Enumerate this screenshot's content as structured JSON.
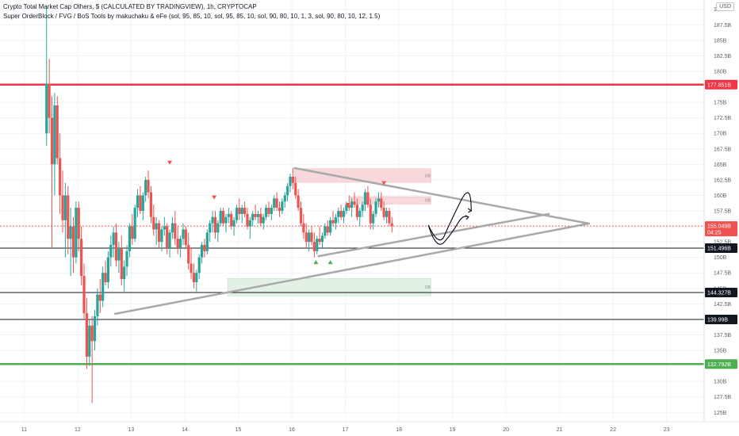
{
  "header": {
    "title": "Crypto Total Market Cap Others, $ (CALCULATED BY TRADINGVIEW), 1h, CRYPTOCAP",
    "indicator": "Super OrderBlock / FVG / BoS Tools by makuchaku & eFe (sol, 95, 85, 10, sol, 95, 85, 10, sol, 90, 80, 10, 1, 3, sol, 90, 80, 10, 12, 1.5)",
    "currency": "USD"
  },
  "colors": {
    "up": "#26a69a",
    "down": "#ef5350",
    "resistance": "#f23645",
    "support": "#4caf50",
    "neutral_line": "#131722",
    "triangle": "#a9a9a9",
    "price_line": "#ef5350",
    "ob_zone_red": "#f7d9dc",
    "ob_zone_green": "#e3f1e4",
    "grid": "#f0f3fa"
  },
  "chart_data": {
    "type": "candlestick",
    "x_ticks": [
      "11",
      "12",
      "13",
      "14",
      "15",
      "16",
      "17",
      "18",
      "19",
      "20",
      "21",
      "22",
      "23"
    ],
    "y_ticks": [
      "190B",
      "187.5B",
      "185B",
      "182.5B",
      "180B",
      "175B",
      "172.5B",
      "170B",
      "167.5B",
      "165B",
      "162.5B",
      "160B",
      "157.5B",
      "152.5B",
      "150B",
      "147.5B",
      "145B",
      "142.5B",
      "137.5B",
      "135B",
      "130B",
      "127.5B",
      "125B"
    ],
    "ylim": [
      123.5,
      191.5
    ],
    "xlim": [
      10.55,
      23.7
    ],
    "horizontal_levels": [
      {
        "label": "177.851B",
        "value": 177.851,
        "kind": "resistance"
      },
      {
        "label": "151.496B",
        "value": 151.496,
        "kind": "neutral"
      },
      {
        "label": "144.327B",
        "value": 144.327,
        "kind": "neutral"
      },
      {
        "label": "139.99B",
        "value": 139.99,
        "kind": "neutral"
      },
      {
        "label": "132.792B",
        "value": 132.792,
        "kind": "support"
      }
    ],
    "current_price": {
      "label": "155.049B",
      "countdown": "04:25",
      "value": 155.049
    },
    "triangle_lines": [
      {
        "x1": 12.7,
        "y1": 140.9,
        "x2": 21.55,
        "y2": 155.45
      },
      {
        "x1": 16.05,
        "y1": 164.4,
        "x2": 21.55,
        "y2": 155.45
      },
      {
        "x1": 16.5,
        "y1": 150.2,
        "x2": 20.8,
        "y2": 157.0
      }
    ],
    "order_blocks": [
      {
        "x1": 16.05,
        "x2": 18.6,
        "y_top": 164.3,
        "y_bot": 162.1,
        "kind": "bear",
        "label": "OB"
      },
      {
        "x1": 17.1,
        "x2": 18.6,
        "y_top": 159.8,
        "y_bot": 158.6,
        "kind": "bear",
        "label": "OB"
      },
      {
        "x1": 14.8,
        "x2": 18.6,
        "y_top": 146.6,
        "y_bot": 143.8,
        "kind": "bull",
        "label": "OB"
      }
    ],
    "ohlc_series_note": "approximate 1h candles",
    "candles": [
      [
        11.42,
        170.0,
        190.5,
        168.0,
        178.0
      ],
      [
        11.47,
        178.0,
        182.0,
        170.0,
        172.5
      ],
      [
        11.52,
        172.5,
        176.0,
        151.5,
        165.0
      ],
      [
        11.57,
        165.0,
        176.5,
        160.0,
        174.5
      ],
      [
        11.62,
        174.5,
        176.0,
        165.0,
        166.0
      ],
      [
        11.67,
        166.0,
        170.0,
        157.0,
        160.0
      ],
      [
        11.72,
        160.0,
        164.0,
        154.0,
        156.0
      ],
      [
        11.77,
        156.0,
        162.0,
        150.0,
        160.0
      ],
      [
        11.82,
        160.0,
        161.5,
        150.5,
        153.0
      ],
      [
        11.87,
        153.0,
        158.0,
        147.0,
        155.0
      ],
      [
        11.92,
        155.0,
        156.5,
        147.5,
        150.0
      ],
      [
        11.97,
        150.0,
        159.0,
        149.0,
        158.0
      ],
      [
        12.02,
        158.0,
        159.0,
        151.0,
        153.0
      ],
      [
        12.07,
        153.0,
        155.0,
        145.5,
        147.0
      ],
      [
        12.12,
        147.0,
        149.0,
        140.0,
        141.0
      ],
      [
        12.17,
        141.0,
        143.5,
        132.0,
        134.0
      ],
      [
        12.22,
        134.0,
        140.0,
        132.5,
        139.0
      ],
      [
        12.27,
        139.0,
        140.5,
        126.5,
        136.5
      ],
      [
        12.32,
        136.5,
        141.5,
        135.0,
        140.5
      ],
      [
        12.37,
        140.5,
        145.0,
        139.0,
        144.0
      ],
      [
        12.42,
        144.0,
        146.5,
        141.0,
        143.0
      ],
      [
        12.47,
        143.0,
        148.5,
        142.0,
        147.5
      ],
      [
        12.52,
        147.5,
        149.5,
        145.5,
        146.0
      ],
      [
        12.57,
        146.0,
        151.0,
        145.0,
        150.0
      ],
      [
        12.62,
        150.0,
        153.5,
        148.5,
        152.0
      ],
      [
        12.67,
        152.0,
        155.0,
        150.0,
        154.0
      ],
      [
        12.72,
        154.0,
        155.5,
        148.5,
        149.5
      ],
      [
        12.77,
        149.5,
        152.5,
        147.5,
        151.5
      ],
      [
        12.82,
        151.5,
        153.5,
        145.5,
        146.5
      ],
      [
        12.87,
        146.5,
        149.5,
        144.5,
        148.5
      ],
      [
        12.92,
        148.5,
        152.0,
        147.0,
        151.0
      ],
      [
        12.97,
        151.0,
        155.5,
        150.0,
        155.0
      ],
      [
        13.02,
        155.0,
        157.0,
        152.0,
        153.0
      ],
      [
        13.07,
        153.0,
        158.5,
        152.5,
        158.0
      ],
      [
        13.12,
        158.0,
        161.0,
        156.5,
        160.0
      ],
      [
        13.17,
        160.0,
        161.5,
        157.0,
        157.5
      ],
      [
        13.22,
        157.5,
        160.5,
        156.0,
        160.0
      ],
      [
        13.27,
        160.0,
        163.0,
        159.0,
        162.5
      ],
      [
        13.32,
        162.5,
        164.0,
        159.5,
        160.5
      ],
      [
        13.37,
        160.5,
        161.5,
        155.5,
        156.5
      ],
      [
        13.42,
        156.5,
        158.5,
        153.5,
        154.5
      ],
      [
        13.47,
        154.5,
        156.5,
        152.0,
        155.5
      ],
      [
        13.52,
        155.5,
        156.0,
        151.5,
        152.5
      ],
      [
        13.57,
        152.5,
        155.0,
        151.0,
        154.5
      ],
      [
        13.62,
        154.5,
        156.5,
        153.5,
        155.0
      ],
      [
        13.67,
        155.0,
        155.5,
        150.5,
        151.5
      ],
      [
        13.72,
        151.5,
        154.5,
        150.0,
        154.0
      ],
      [
        13.77,
        154.0,
        156.5,
        153.0,
        155.5
      ],
      [
        13.82,
        155.5,
        157.5,
        152.0,
        153.0
      ],
      [
        13.87,
        153.0,
        155.0,
        150.5,
        151.5
      ],
      [
        13.92,
        151.5,
        153.5,
        150.0,
        153.0
      ],
      [
        13.97,
        153.0,
        155.5,
        152.0,
        154.5
      ],
      [
        14.02,
        154.5,
        155.0,
        151.5,
        152.0
      ],
      [
        14.07,
        152.0,
        154.0,
        148.0,
        149.0
      ],
      [
        14.12,
        149.0,
        151.5,
        146.5,
        147.5
      ],
      [
        14.17,
        147.5,
        149.0,
        145.0,
        146.0
      ],
      [
        14.22,
        146.0,
        148.0,
        144.5,
        147.5
      ],
      [
        14.27,
        147.5,
        150.5,
        146.5,
        150.0
      ],
      [
        14.32,
        150.0,
        152.5,
        149.0,
        152.0
      ],
      [
        14.37,
        152.0,
        153.0,
        150.0,
        151.0
      ],
      [
        14.42,
        151.0,
        154.5,
        150.5,
        154.0
      ],
      [
        14.47,
        154.0,
        156.0,
        152.5,
        155.5
      ],
      [
        14.52,
        155.5,
        157.5,
        154.0,
        156.5
      ],
      [
        14.57,
        156.5,
        157.5,
        153.0,
        154.0
      ],
      [
        14.62,
        154.0,
        156.0,
        152.5,
        155.5
      ],
      [
        14.67,
        155.5,
        158.0,
        155.0,
        157.5
      ],
      [
        14.72,
        157.5,
        158.0,
        155.0,
        155.5
      ],
      [
        14.77,
        155.5,
        157.0,
        154.0,
        156.5
      ],
      [
        14.82,
        156.5,
        158.0,
        155.5,
        157.0
      ],
      [
        14.87,
        157.0,
        157.5,
        154.5,
        155.0
      ],
      [
        14.92,
        155.0,
        156.5,
        153.5,
        156.0
      ],
      [
        14.97,
        156.0,
        158.5,
        155.5,
        158.0
      ],
      [
        15.02,
        158.0,
        159.5,
        156.0,
        157.0
      ],
      [
        15.07,
        157.0,
        158.5,
        155.5,
        158.0
      ],
      [
        15.12,
        158.0,
        159.0,
        156.5,
        157.0
      ],
      [
        15.17,
        157.0,
        158.0,
        154.5,
        155.0
      ],
      [
        15.22,
        155.0,
        156.5,
        153.0,
        156.0
      ],
      [
        15.27,
        156.0,
        157.5,
        155.0,
        157.0
      ],
      [
        15.32,
        157.0,
        158.5,
        156.0,
        156.5
      ],
      [
        15.37,
        156.5,
        157.5,
        155.5,
        157.0
      ],
      [
        15.42,
        157.0,
        158.0,
        155.0,
        155.5
      ],
      [
        15.47,
        155.5,
        157.0,
        154.5,
        156.5
      ],
      [
        15.52,
        156.5,
        158.5,
        156.0,
        158.0
      ],
      [
        15.57,
        158.0,
        159.0,
        156.5,
        157.0
      ],
      [
        15.62,
        157.0,
        158.5,
        156.0,
        158.0
      ],
      [
        15.67,
        158.0,
        160.0,
        157.5,
        159.5
      ],
      [
        15.72,
        159.5,
        160.5,
        157.5,
        158.0
      ],
      [
        15.77,
        158.0,
        159.0,
        156.5,
        157.5
      ],
      [
        15.82,
        157.5,
        159.5,
        157.0,
        159.0
      ],
      [
        15.87,
        159.0,
        160.5,
        158.0,
        160.0
      ],
      [
        15.92,
        160.0,
        162.0,
        159.0,
        161.5
      ],
      [
        15.97,
        161.5,
        163.5,
        160.5,
        163.0
      ],
      [
        16.02,
        163.0,
        164.4,
        161.0,
        162.0
      ],
      [
        16.07,
        162.0,
        163.0,
        159.5,
        160.0
      ],
      [
        16.12,
        160.0,
        161.0,
        157.5,
        158.0
      ],
      [
        16.17,
        158.0,
        159.0,
        155.0,
        155.5
      ],
      [
        16.22,
        155.5,
        157.0,
        153.0,
        154.0
      ],
      [
        16.27,
        154.0,
        155.5,
        151.5,
        152.5
      ],
      [
        16.32,
        152.5,
        154.5,
        151.0,
        154.0
      ],
      [
        16.37,
        154.0,
        155.0,
        152.0,
        152.5
      ],
      [
        16.42,
        152.5,
        154.0,
        150.0,
        151.0
      ],
      [
        16.47,
        151.0,
        153.5,
        150.5,
        153.0
      ],
      [
        16.52,
        153.0,
        155.0,
        152.0,
        152.5
      ],
      [
        16.57,
        152.5,
        154.0,
        151.5,
        153.5
      ],
      [
        16.62,
        153.5,
        155.5,
        153.0,
        155.0
      ],
      [
        16.67,
        155.0,
        156.0,
        153.5,
        154.0
      ],
      [
        16.72,
        154.0,
        156.5,
        153.5,
        156.0
      ],
      [
        16.77,
        156.0,
        157.5,
        155.0,
        155.5
      ],
      [
        16.82,
        155.5,
        157.0,
        154.5,
        156.5
      ],
      [
        16.87,
        156.5,
        158.0,
        155.5,
        157.5
      ],
      [
        16.92,
        157.5,
        158.5,
        156.0,
        156.5
      ],
      [
        16.97,
        156.5,
        158.0,
        155.5,
        157.5
      ],
      [
        17.02,
        157.5,
        159.0,
        157.0,
        158.5
      ],
      [
        17.07,
        158.5,
        160.0,
        157.5,
        158.0
      ],
      [
        17.12,
        158.0,
        159.5,
        156.5,
        159.0
      ],
      [
        17.17,
        159.0,
        160.5,
        158.0,
        158.5
      ],
      [
        17.22,
        158.5,
        159.5,
        156.0,
        156.5
      ],
      [
        17.27,
        156.5,
        158.0,
        155.0,
        157.5
      ],
      [
        17.32,
        157.5,
        159.0,
        156.5,
        158.5
      ],
      [
        17.37,
        158.5,
        161.0,
        157.5,
        160.5
      ],
      [
        17.42,
        160.5,
        161.5,
        158.0,
        158.5
      ],
      [
        17.47,
        158.5,
        159.5,
        154.5,
        155.5
      ],
      [
        17.52,
        155.5,
        157.5,
        154.5,
        157.0
      ],
      [
        17.57,
        157.0,
        159.5,
        156.5,
        159.0
      ],
      [
        17.62,
        159.0,
        160.5,
        158.0,
        159.5
      ],
      [
        17.67,
        159.5,
        160.5,
        157.5,
        158.0
      ],
      [
        17.72,
        158.0,
        159.0,
        156.0,
        156.5
      ],
      [
        17.77,
        156.5,
        158.0,
        155.5,
        157.5
      ],
      [
        17.82,
        157.5,
        158.0,
        155.0,
        155.5
      ],
      [
        17.87,
        155.5,
        156.5,
        154.0,
        155.049
      ]
    ]
  }
}
